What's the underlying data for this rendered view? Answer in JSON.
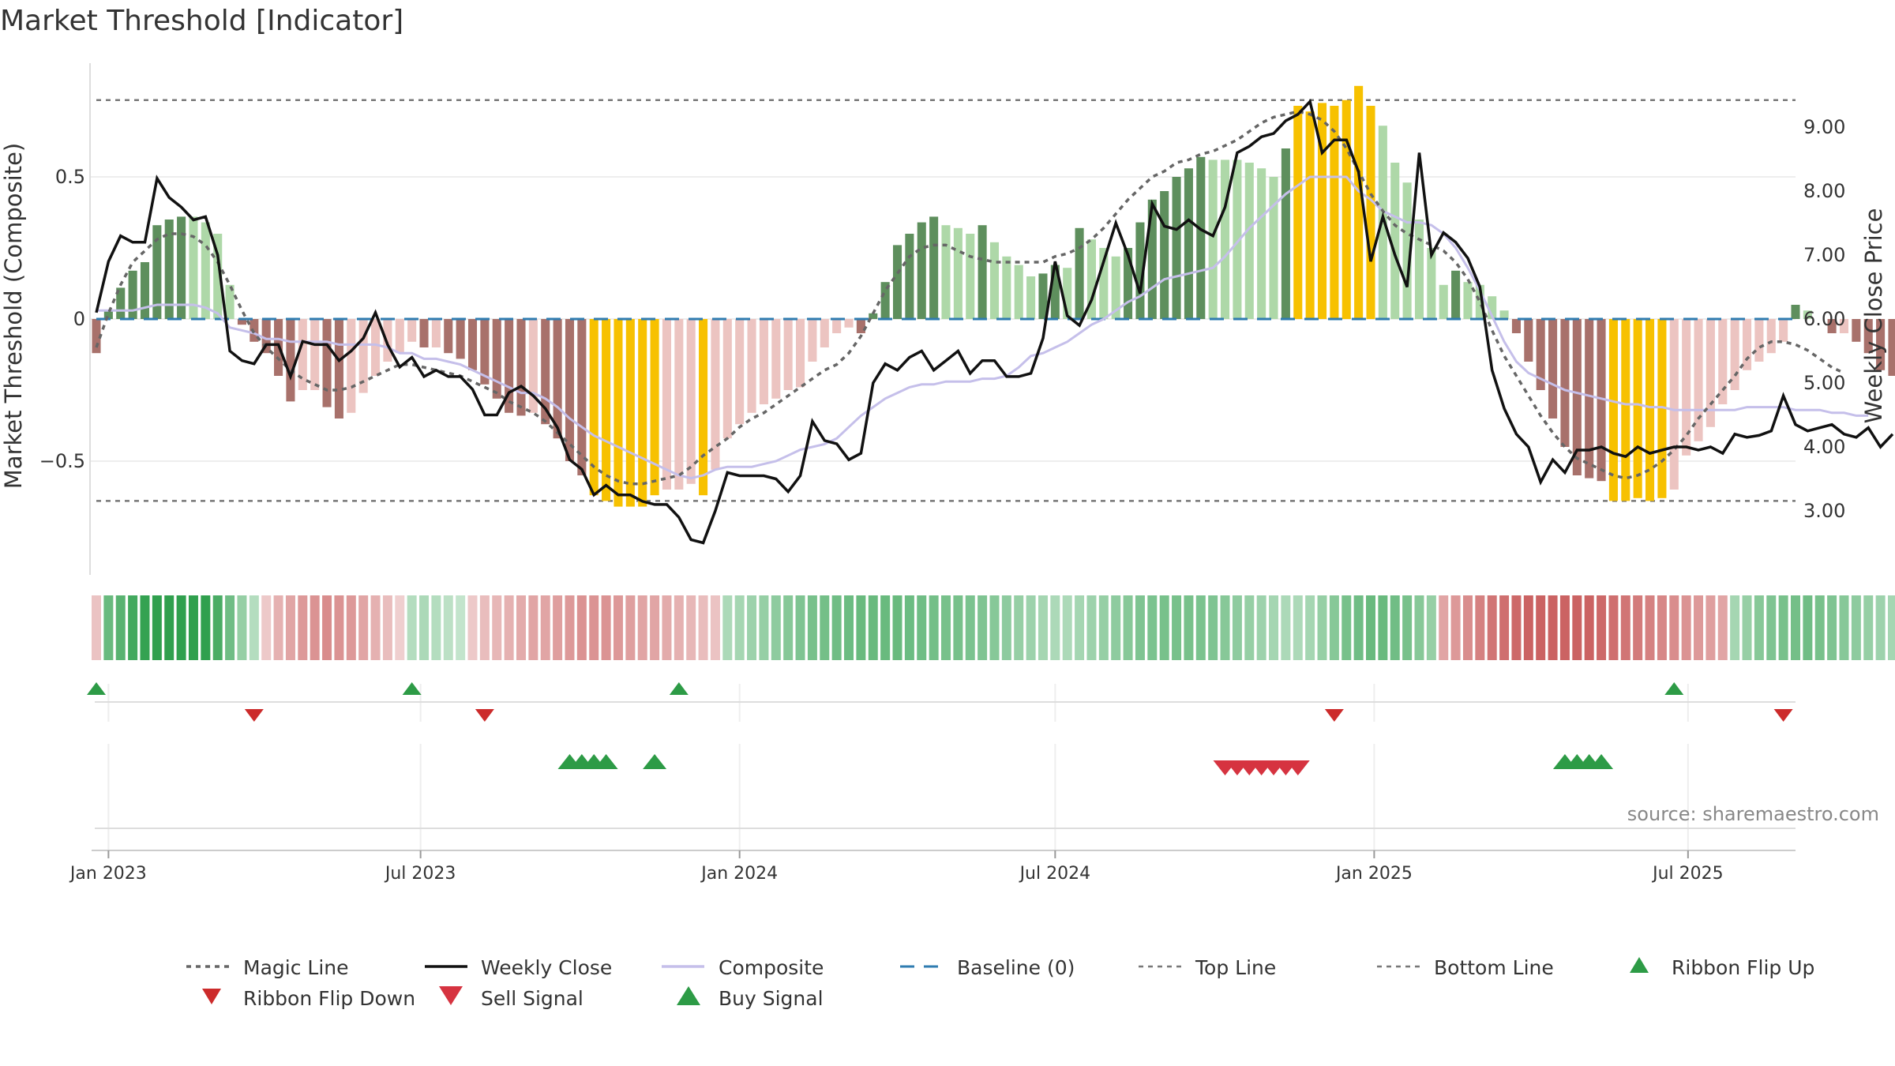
{
  "title": "Market Threshold [Indicator]",
  "source": "source: sharemaestro.com",
  "colors": {
    "strong_pos": "#5e8f5d",
    "weak_pos": "#aed8a8",
    "strong_neg": "#a8716b",
    "weak_neg": "#ecc4c1",
    "extreme": "#f7c100",
    "price": "#111111",
    "composite": "#c5bfea",
    "magic": "#666666",
    "baseline": "#2f7cb0",
    "buy": "#2d9b46",
    "sell": "#d63340",
    "flip_up": "#2d9b46",
    "flip_down": "#cc2b2b"
  },
  "chart_data": {
    "type": "bar",
    "title": "Market Threshold [Indicator]",
    "xlabel": "",
    "ylabel_left": "Market Threshold (Composite)",
    "ylabel_right": "Weekly Close Price",
    "x_start": "2022-12-26",
    "x_step_days": 7,
    "xlim": [
      "2022-12-26",
      "2025-09-01"
    ],
    "ylim_left": [
      -0.9,
      0.9
    ],
    "ylim_right": [
      2.0,
      10.0
    ],
    "left_ticks": [
      {
        "value": 0.5,
        "label": "0.5"
      },
      {
        "value": 0,
        "label": "0"
      },
      {
        "value": -0.5,
        "label": "−0.5"
      }
    ],
    "right_ticks": [
      {
        "value": 9,
        "label": "9.00"
      },
      {
        "value": 8,
        "label": "8.00"
      },
      {
        "value": 7,
        "label": "7.00"
      },
      {
        "value": 6,
        "label": "6.00"
      },
      {
        "value": 5,
        "label": "5.00"
      },
      {
        "value": 4,
        "label": "4.00"
      },
      {
        "value": 3,
        "label": "3.00"
      }
    ],
    "x_ticks": [
      {
        "date": "2023-01-02",
        "label": "Jan 2023"
      },
      {
        "date": "2023-07-01",
        "label": "Jul 2023"
      },
      {
        "date": "2024-01-01",
        "label": "Jan 2024"
      },
      {
        "date": "2024-07-01",
        "label": "Jul 2024"
      },
      {
        "date": "2025-01-01",
        "label": "Jan 2025"
      },
      {
        "date": "2025-07-01",
        "label": "Jul 2025"
      }
    ],
    "top_line": 0.77,
    "bottom_line": -0.64,
    "grid": true,
    "legend_position": "bottom",
    "series": [
      {
        "name": "Weekly Close",
        "axis": "right",
        "values": [
          6.1,
          6.9,
          7.3,
          7.2,
          7.2,
          8.2,
          7.9,
          7.75,
          7.55,
          7.6,
          7.0,
          5.5,
          5.35,
          5.3,
          5.6,
          5.6,
          5.1,
          5.65,
          5.6,
          5.6,
          5.35,
          5.5,
          5.7,
          6.1,
          5.6,
          5.25,
          5.4,
          5.1,
          5.2,
          5.1,
          5.1,
          4.9,
          4.5,
          4.5,
          4.85,
          4.95,
          4.8,
          4.6,
          4.3,
          3.8,
          3.65,
          3.25,
          3.4,
          3.25,
          3.25,
          3.15,
          3.1,
          3.1,
          2.9,
          2.55,
          2.5,
          3.0,
          3.6,
          3.55,
          3.55,
          3.55,
          3.5,
          3.3,
          3.55,
          4.4,
          4.1,
          4.05,
          3.8,
          3.9,
          5.0,
          5.3,
          5.2,
          5.4,
          5.5,
          5.2,
          5.35,
          5.5,
          5.15,
          5.35,
          5.35,
          5.1,
          5.1,
          5.15,
          5.7,
          6.9,
          6.05,
          5.9,
          6.3,
          6.9,
          7.5,
          7.0,
          6.4,
          7.8,
          7.45,
          7.4,
          7.55,
          7.4,
          7.3,
          7.75,
          8.6,
          8.7,
          8.85,
          8.9,
          9.1,
          9.2,
          9.4,
          8.6,
          8.8,
          8.8,
          8.3,
          6.9,
          7.6,
          7.0,
          6.5,
          8.6,
          7.0,
          7.35,
          7.2,
          6.95,
          6.5,
          5.2,
          4.6,
          4.2,
          4.0,
          3.45,
          3.8,
          3.6,
          3.95,
          3.95,
          4.0,
          3.9,
          3.85,
          4.0,
          3.9,
          3.95,
          4.0,
          4.0,
          3.95,
          4.0,
          3.9,
          4.2,
          4.15,
          4.18,
          4.25,
          4.8,
          4.35,
          4.25,
          4.3,
          4.35,
          4.2,
          4.15,
          4.3,
          4.0,
          4.2
        ]
      },
      {
        "name": "Composite",
        "axis": "left",
        "values": [
          0.03,
          0.03,
          0.03,
          0.03,
          0.04,
          0.05,
          0.05,
          0.05,
          0.05,
          0.04,
          0.02,
          -0.03,
          -0.04,
          -0.05,
          -0.07,
          -0.07,
          -0.08,
          -0.08,
          -0.08,
          -0.08,
          -0.09,
          -0.09,
          -0.09,
          -0.09,
          -0.1,
          -0.12,
          -0.12,
          -0.14,
          -0.14,
          -0.15,
          -0.16,
          -0.18,
          -0.2,
          -0.22,
          -0.24,
          -0.26,
          -0.26,
          -0.28,
          -0.31,
          -0.35,
          -0.38,
          -0.41,
          -0.43,
          -0.45,
          -0.47,
          -0.49,
          -0.51,
          -0.53,
          -0.55,
          -0.56,
          -0.55,
          -0.53,
          -0.52,
          -0.52,
          -0.52,
          -0.51,
          -0.5,
          -0.48,
          -0.46,
          -0.45,
          -0.44,
          -0.42,
          -0.38,
          -0.34,
          -0.31,
          -0.28,
          -0.26,
          -0.24,
          -0.23,
          -0.23,
          -0.22,
          -0.22,
          -0.22,
          -0.21,
          -0.21,
          -0.2,
          -0.17,
          -0.13,
          -0.12,
          -0.1,
          -0.08,
          -0.05,
          -0.02,
          0.0,
          0.03,
          0.06,
          0.08,
          0.11,
          0.14,
          0.15,
          0.16,
          0.17,
          0.18,
          0.22,
          0.27,
          0.32,
          0.36,
          0.4,
          0.44,
          0.47,
          0.5,
          0.5,
          0.5,
          0.5,
          0.45,
          0.42,
          0.38,
          0.36,
          0.34,
          0.34,
          0.33,
          0.3,
          0.25,
          0.18,
          0.1,
          0.01,
          -0.08,
          -0.15,
          -0.19,
          -0.21,
          -0.23,
          -0.25,
          -0.26,
          -0.27,
          -0.28,
          -0.29,
          -0.3,
          -0.3,
          -0.31,
          -0.31,
          -0.32,
          -0.32,
          -0.32,
          -0.32,
          -0.32,
          -0.32,
          -0.31,
          -0.31,
          -0.31,
          -0.31,
          -0.32,
          -0.32,
          -0.32,
          -0.33,
          -0.33,
          -0.34,
          -0.34
        ]
      },
      {
        "name": "Magic Line",
        "axis": "left",
        "values": [
          -0.1,
          0.02,
          0.12,
          0.2,
          0.24,
          0.28,
          0.3,
          0.3,
          0.29,
          0.26,
          0.2,
          0.12,
          0.03,
          -0.05,
          -0.1,
          -0.14,
          -0.18,
          -0.21,
          -0.23,
          -0.25,
          -0.25,
          -0.24,
          -0.22,
          -0.2,
          -0.18,
          -0.16,
          -0.16,
          -0.17,
          -0.18,
          -0.19,
          -0.2,
          -0.22,
          -0.24,
          -0.26,
          -0.29,
          -0.31,
          -0.33,
          -0.36,
          -0.4,
          -0.44,
          -0.48,
          -0.52,
          -0.55,
          -0.57,
          -0.58,
          -0.58,
          -0.57,
          -0.56,
          -0.55,
          -0.52,
          -0.48,
          -0.45,
          -0.42,
          -0.38,
          -0.35,
          -0.33,
          -0.3,
          -0.27,
          -0.24,
          -0.21,
          -0.18,
          -0.16,
          -0.12,
          -0.06,
          0.02,
          0.1,
          0.16,
          0.22,
          0.25,
          0.26,
          0.26,
          0.24,
          0.22,
          0.21,
          0.2,
          0.2,
          0.2,
          0.2,
          0.2,
          0.22,
          0.23,
          0.25,
          0.28,
          0.32,
          0.37,
          0.42,
          0.46,
          0.5,
          0.52,
          0.55,
          0.56,
          0.58,
          0.59,
          0.61,
          0.63,
          0.66,
          0.69,
          0.71,
          0.72,
          0.73,
          0.72,
          0.7,
          0.66,
          0.6,
          0.52,
          0.44,
          0.38,
          0.33,
          0.3,
          0.28,
          0.26,
          0.24,
          0.2,
          0.14,
          0.06,
          -0.04,
          -0.13,
          -0.2,
          -0.27,
          -0.34,
          -0.4,
          -0.45,
          -0.49,
          -0.51,
          -0.53,
          -0.55,
          -0.56,
          -0.55,
          -0.53,
          -0.5,
          -0.46,
          -0.41,
          -0.35,
          -0.3,
          -0.25,
          -0.2,
          -0.14,
          -0.1,
          -0.08,
          -0.08,
          -0.09,
          -0.11,
          -0.14,
          -0.17,
          -0.19
        ]
      },
      {
        "name": "Composite Bars",
        "axis": "left",
        "values": [
          -0.12,
          0.03,
          0.11,
          0.17,
          0.2,
          0.33,
          0.35,
          0.36,
          0.36,
          0.34,
          0.3,
          0.12,
          -0.02,
          -0.08,
          -0.12,
          -0.2,
          -0.29,
          -0.25,
          -0.25,
          -0.31,
          -0.35,
          -0.33,
          -0.26,
          -0.2,
          -0.15,
          -0.12,
          -0.08,
          -0.1,
          -0.1,
          -0.12,
          -0.14,
          -0.18,
          -0.23,
          -0.28,
          -0.33,
          -0.34,
          -0.33,
          -0.37,
          -0.42,
          -0.5,
          -0.55,
          -0.62,
          -0.64,
          -0.66,
          -0.66,
          -0.66,
          -0.62,
          -0.6,
          -0.6,
          -0.58,
          -0.62,
          -0.53,
          -0.42,
          -0.37,
          -0.33,
          -0.3,
          -0.28,
          -0.25,
          -0.24,
          -0.15,
          -0.1,
          -0.05,
          -0.03,
          -0.05,
          0.02,
          0.13,
          0.26,
          0.3,
          0.34,
          0.36,
          0.33,
          0.32,
          0.3,
          0.33,
          0.27,
          0.22,
          0.19,
          0.15,
          0.16,
          0.19,
          0.18,
          0.32,
          0.28,
          0.25,
          0.22,
          0.25,
          0.34,
          0.42,
          0.45,
          0.5,
          0.53,
          0.57,
          0.56,
          0.56,
          0.56,
          0.55,
          0.53,
          0.5,
          0.6,
          0.75,
          0.73,
          0.76,
          0.75,
          0.77,
          0.82,
          0.75,
          0.68,
          0.55,
          0.48,
          0.35,
          0.25,
          0.12,
          0.17,
          0.13,
          0.12,
          0.08,
          0.03,
          -0.05,
          -0.15,
          -0.25,
          -0.35,
          -0.45,
          -0.55,
          -0.56,
          -0.57,
          -0.64,
          -0.64,
          -0.63,
          -0.64,
          -0.63,
          -0.6,
          -0.48,
          -0.43,
          -0.38,
          -0.3,
          -0.25,
          -0.18,
          -0.15,
          -0.12,
          -0.08,
          0.05,
          0.03,
          0,
          -0.05,
          -0.05,
          -0.08,
          -0.12,
          -0.18,
          -0.2,
          -0.25,
          -0.26
        ]
      },
      {
        "name": "Ribbon",
        "values": [
          -0.1,
          0.3,
          0.34,
          0.4,
          0.44,
          0.48,
          0.5,
          0.5,
          0.49,
          0.45,
          0.38,
          0.28,
          0.18,
          0.1,
          -0.08,
          -0.16,
          -0.2,
          -0.24,
          -0.26,
          -0.28,
          -0.26,
          -0.24,
          -0.2,
          -0.16,
          -0.12,
          -0.06,
          0.1,
          0.12,
          0.1,
          0.08,
          0.06,
          -0.08,
          -0.12,
          -0.14,
          -0.16,
          -0.18,
          -0.2,
          -0.2,
          -0.22,
          -0.24,
          -0.26,
          -0.26,
          -0.26,
          -0.24,
          -0.22,
          -0.2,
          -0.2,
          -0.18,
          -0.16,
          -0.14,
          -0.12,
          -0.1,
          0.12,
          0.14,
          0.16,
          0.18,
          0.2,
          0.22,
          0.24,
          0.26,
          0.27,
          0.28,
          0.29,
          0.3,
          0.3,
          0.3,
          0.3,
          0.29,
          0.28,
          0.27,
          0.26,
          0.26,
          0.25,
          0.24,
          0.22,
          0.2,
          0.18,
          0.16,
          0.14,
          0.12,
          0.12,
          0.14,
          0.16,
          0.18,
          0.2,
          0.22,
          0.24,
          0.25,
          0.26,
          0.26,
          0.26,
          0.25,
          0.24,
          0.22,
          0.2,
          0.18,
          0.16,
          0.14,
          0.12,
          0.12,
          0.14,
          0.18,
          0.22,
          0.26,
          0.28,
          0.3,
          0.3,
          0.28,
          0.26,
          0.22,
          0.18,
          -0.2,
          -0.24,
          -0.28,
          -0.32,
          -0.36,
          -0.38,
          -0.4,
          -0.42,
          -0.42,
          -0.42,
          -0.42,
          -0.42,
          -0.42,
          -0.4,
          -0.38,
          -0.36,
          -0.34,
          -0.32,
          -0.3,
          -0.28,
          -0.26,
          -0.24,
          -0.22,
          -0.2,
          0.14,
          0.18,
          0.22,
          0.24,
          0.26,
          0.27,
          0.28,
          0.26,
          0.24,
          0.22,
          0.2,
          0.18,
          0.16,
          0.14,
          -0.1
        ]
      }
    ],
    "ribbon_flip_up": [
      "2022-12-26",
      "2023-06-26",
      "2023-11-27",
      "2025-06-23"
    ],
    "ribbon_flip_down": [
      "2023-03-27",
      "2023-08-07",
      "2024-12-09",
      "2025-08-25"
    ],
    "buy_signals": [
      "2023-09-25",
      "2023-10-02",
      "2023-10-09",
      "2023-10-16",
      "2023-11-13",
      "2025-04-21",
      "2025-04-28",
      "2025-05-05",
      "2025-05-12"
    ],
    "sell_signals": [
      "2024-10-07",
      "2024-10-14",
      "2024-10-21",
      "2024-10-28",
      "2024-11-04",
      "2024-11-11",
      "2024-11-18"
    ],
    "legend": [
      "Magic Line",
      "Weekly Close",
      "Composite",
      "Baseline (0)",
      "Top Line",
      "Bottom Line",
      "Ribbon Flip Up",
      "Ribbon Flip Down",
      "Sell Signal",
      "Buy Signal"
    ]
  }
}
